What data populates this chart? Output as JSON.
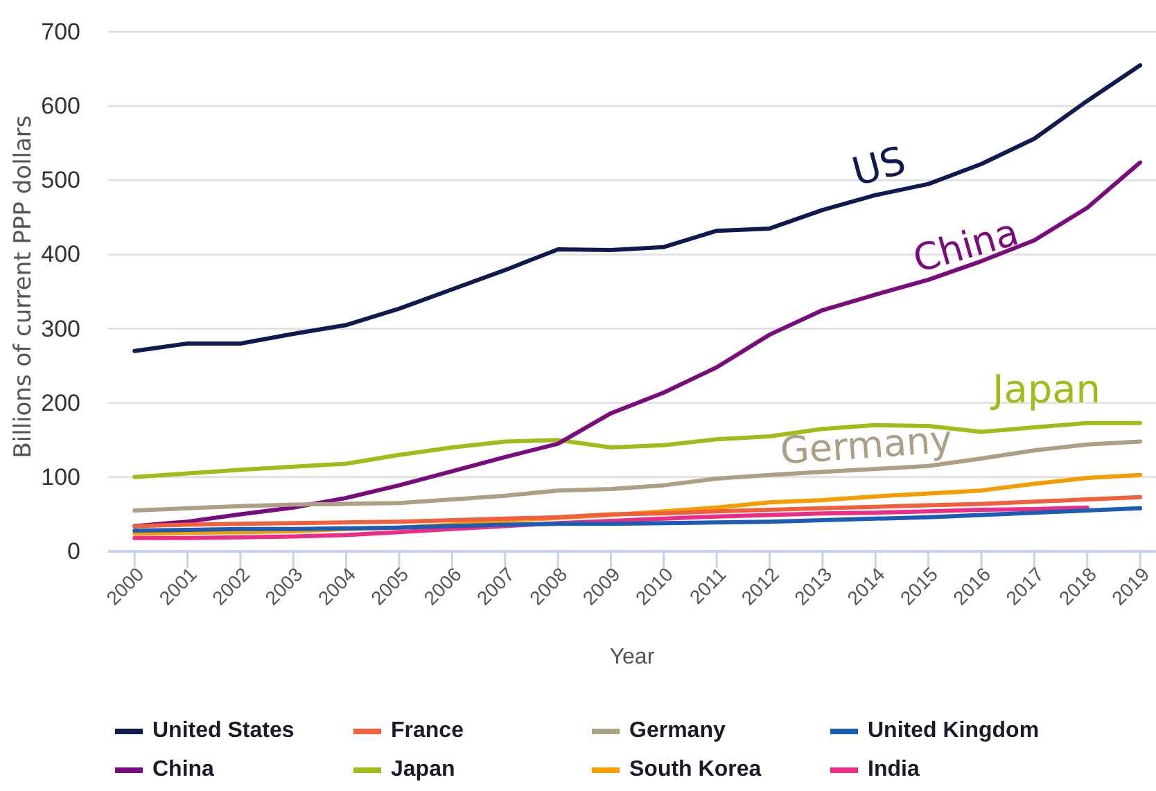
{
  "chart_data": {
    "type": "line",
    "xlabel": "Year",
    "ylabel": "Billions of current PPP dollars",
    "x": [
      2000,
      2001,
      2002,
      2003,
      2004,
      2005,
      2006,
      2007,
      2008,
      2009,
      2010,
      2011,
      2012,
      2013,
      2014,
      2015,
      2016,
      2017,
      2018,
      2019
    ],
    "xlim": [
      1999.5,
      2019.3
    ],
    "xticks": [
      2000,
      2001,
      2002,
      2003,
      2004,
      2005,
      2006,
      2007,
      2008,
      2009,
      2010,
      2011,
      2012,
      2013,
      2014,
      2015,
      2016,
      2017,
      2018,
      2019
    ],
    "ylim": [
      0,
      700
    ],
    "yticks": [
      0,
      100,
      200,
      300,
      400,
      500,
      600,
      700
    ],
    "grid": "y",
    "legend": "bottom",
    "marker": "none",
    "line_style": "solid",
    "series": [
      {
        "name": "United States",
        "color": "#0f1a50",
        "values": [
          270,
          280,
          280,
          293,
          305,
          327,
          353,
          379,
          407,
          406,
          410,
          432,
          435,
          460,
          480,
          495,
          522,
          556,
          607,
          655
        ]
      },
      {
        "name": "France",
        "color": "#f0603c",
        "values": [
          34,
          36,
          37,
          38,
          39,
          40,
          42,
          44,
          46,
          50,
          51,
          54,
          56,
          58,
          60,
          62,
          64,
          67,
          70,
          73
        ]
      },
      {
        "name": "Germany",
        "color": "#ad9e86",
        "values": [
          55,
          58,
          61,
          63,
          64,
          65,
          70,
          75,
          82,
          84,
          89,
          98,
          103,
          107,
          111,
          115,
          125,
          136,
          144,
          148
        ]
      },
      {
        "name": "United Kingdom",
        "color": "#1d5cb4",
        "values": [
          28,
          29,
          30,
          30,
          31,
          32,
          34,
          36,
          37,
          37,
          38,
          39,
          40,
          42,
          44,
          46,
          49,
          52,
          55,
          58
        ]
      },
      {
        "name": "China",
        "color": "#7a0b7c",
        "values": [
          34,
          40,
          50,
          59,
          72,
          89,
          108,
          127,
          145,
          186,
          214,
          248,
          292,
          325,
          346,
          366,
          391,
          419,
          463,
          524
        ]
      },
      {
        "name": "Japan",
        "color": "#a3bb1a",
        "values": [
          100,
          105,
          110,
          114,
          118,
          130,
          140,
          148,
          150,
          140,
          143,
          151,
          155,
          165,
          170,
          169,
          161,
          167,
          173,
          173
        ]
      },
      {
        "name": "South Korea",
        "color": "#f59c00",
        "values": [
          24,
          25,
          26,
          27,
          30,
          32,
          36,
          41,
          45,
          49,
          54,
          59,
          66,
          69,
          74,
          78,
          82,
          91,
          99,
          103
        ]
      },
      {
        "name": "India",
        "color": "#ec2d87",
        "values": [
          18,
          18,
          19,
          20,
          22,
          26,
          30,
          34,
          38,
          41,
          44,
          47,
          49,
          51,
          52,
          54,
          56,
          57,
          59,
          null
        ]
      }
    ],
    "annotations": [
      "US",
      "China",
      "Japan",
      "Germany"
    ]
  }
}
